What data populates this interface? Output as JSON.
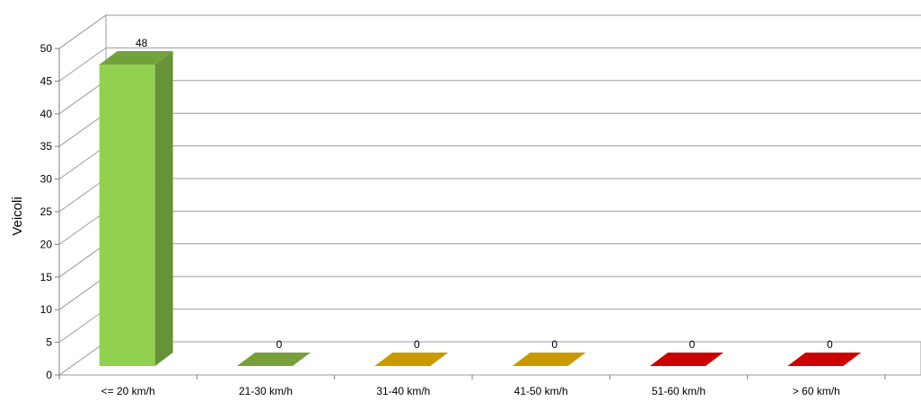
{
  "chart_data": {
    "type": "bar",
    "style": "3d-column",
    "categories": [
      "<= 20 km/h",
      "21-30 km/h",
      "31-40 km/h",
      "41-50 km/h",
      "51-60 km/h",
      "> 60 km/h"
    ],
    "values": [
      48,
      0,
      0,
      0,
      0,
      0
    ],
    "data_labels": [
      "48",
      "0",
      "0",
      "0",
      "0",
      "0"
    ],
    "bar_colors": [
      "#92d050",
      "#77a03a",
      "#c89a00",
      "#c89a00",
      "#cc0000",
      "#cc0000"
    ],
    "ylabel": "Veicoli",
    "xlabel": "",
    "title": "",
    "ylim": [
      0,
      50
    ],
    "yticks": [
      0,
      5,
      10,
      15,
      20,
      25,
      30,
      35,
      40,
      45,
      50
    ],
    "grid": true,
    "legend": "none"
  }
}
